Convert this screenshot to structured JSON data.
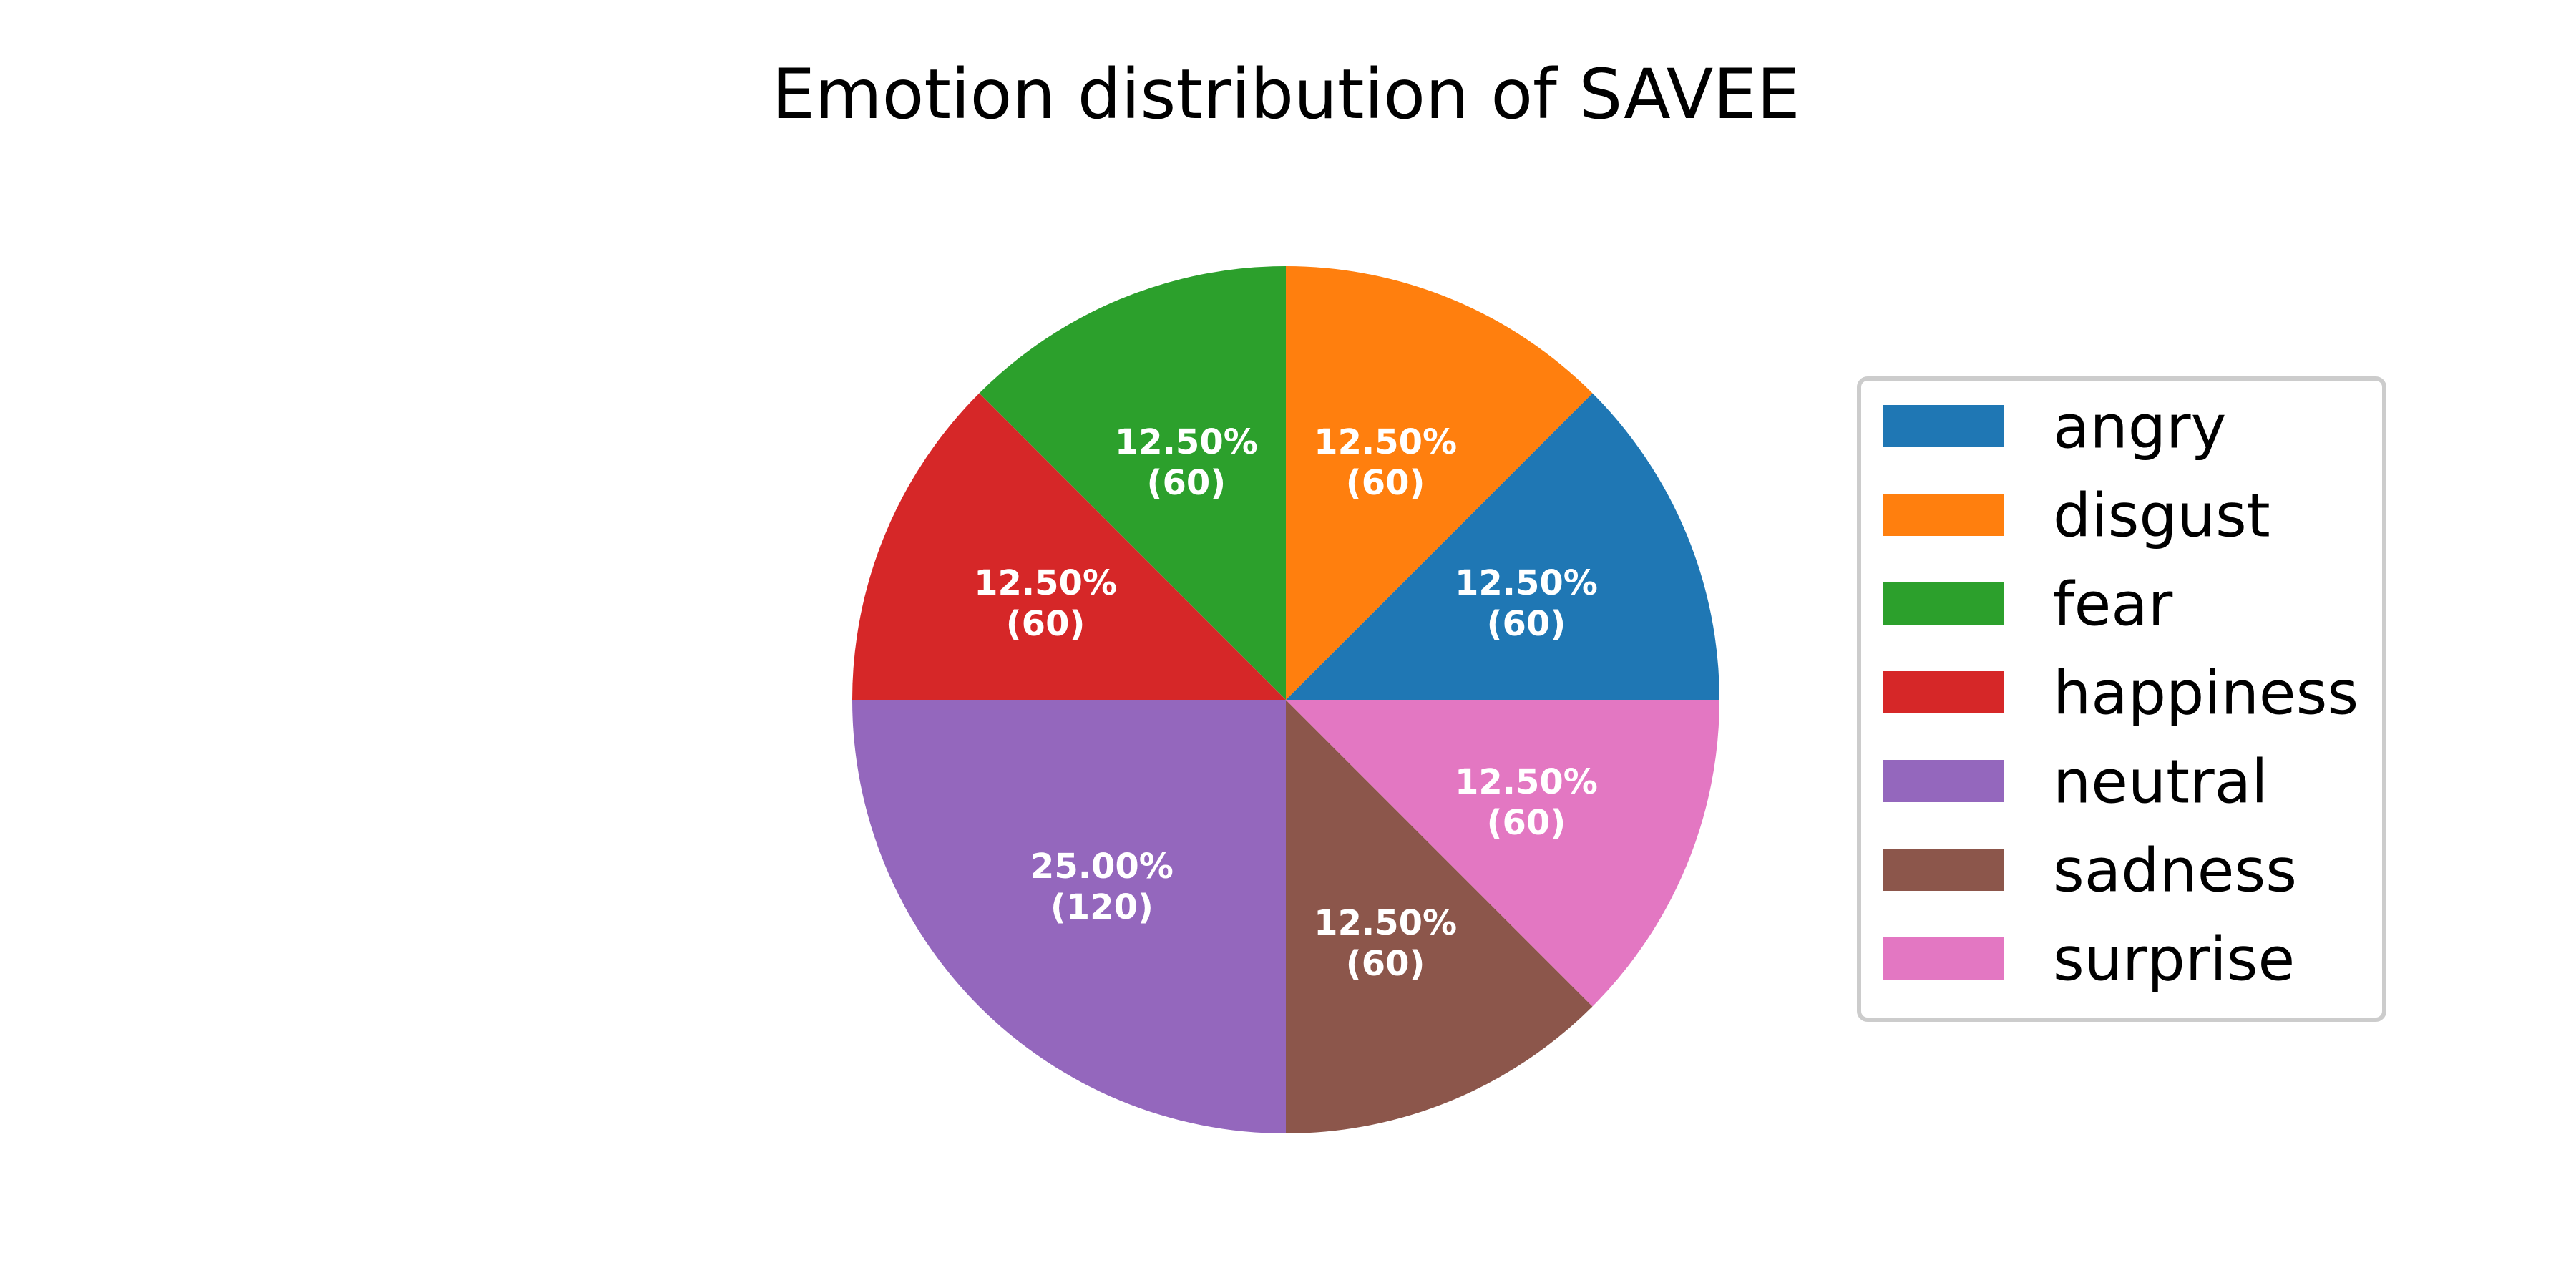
{
  "chart_data": {
    "type": "pie",
    "title": "Emotion distribution of SAVEE",
    "start_angle_deg": 0,
    "direction": "counterclockwise",
    "legend_position": "right",
    "slices": [
      {
        "label": "angry",
        "value": 60,
        "percent_label": "12.50%",
        "count_label": "(60)",
        "color": "#1f77b4"
      },
      {
        "label": "disgust",
        "value": 60,
        "percent_label": "12.50%",
        "count_label": "(60)",
        "color": "#ff7f0e"
      },
      {
        "label": "fear",
        "value": 60,
        "percent_label": "12.50%",
        "count_label": "(60)",
        "color": "#2ca02c"
      },
      {
        "label": "happiness",
        "value": 60,
        "percent_label": "12.50%",
        "count_label": "(60)",
        "color": "#d62728"
      },
      {
        "label": "neutral",
        "value": 120,
        "percent_label": "25.00%",
        "count_label": "(120)",
        "color": "#9467bd"
      },
      {
        "label": "sadness",
        "value": 60,
        "percent_label": "12.50%",
        "count_label": "(60)",
        "color": "#8c564b"
      },
      {
        "label": "surprise",
        "value": 60,
        "percent_label": "12.50%",
        "count_label": "(60)",
        "color": "#e377c2"
      }
    ]
  }
}
